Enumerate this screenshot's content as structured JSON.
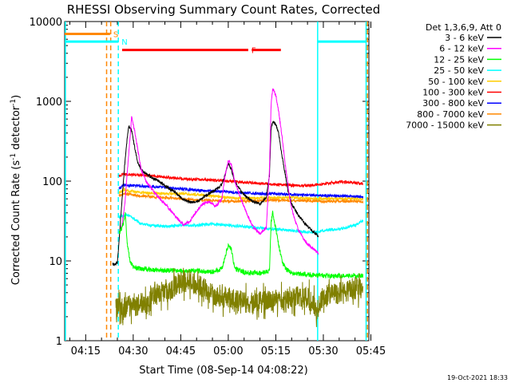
{
  "chart_data": {
    "type": "line",
    "title": "RHESSI Observing Summary Count Rates, Corrected",
    "xlabel": "Start Time (08-Sep-14 04:08:22)",
    "ylabel_main": "Corrected Count Rate (s",
    "ylabel_sup1": "-1",
    "ylabel_mid": " detector",
    "ylabel_sup2": "-1",
    "ylabel_end": ")",
    "yscale": "log",
    "ylim": [
      1,
      10000
    ],
    "xlim": [
      8.37,
      104.37
    ],
    "x_unit": "minutes after 04:00 UT",
    "x_ticks": [
      {
        "value": 15,
        "label": "04:15"
      },
      {
        "value": 30,
        "label": "04:30"
      },
      {
        "value": 45,
        "label": "04:45"
      },
      {
        "value": 60,
        "label": "05:00"
      },
      {
        "value": 75,
        "label": "05:15"
      },
      {
        "value": 90,
        "label": "05:30"
      },
      {
        "value": 105,
        "label": "05:45"
      }
    ],
    "y_ticks": [
      {
        "value": 1,
        "label": "1"
      },
      {
        "value": 10,
        "label": "10"
      },
      {
        "value": 100,
        "label": "100"
      },
      {
        "value": 1000,
        "label": "1000"
      },
      {
        "value": 10000,
        "label": "10000"
      }
    ],
    "legend": {
      "placement": "right",
      "header": "Det 1,3,6,9, Att 0",
      "entries": [
        {
          "label": "3 - 6 keV",
          "color": "#000000"
        },
        {
          "label": "6 - 12 keV",
          "color": "#ff00ff"
        },
        {
          "label": "12 - 25 keV",
          "color": "#00ff00"
        },
        {
          "label": "25 - 50 keV",
          "color": "#00ffff"
        },
        {
          "label": "50 - 100 keV",
          "color": "#ffcc00"
        },
        {
          "label": "100 - 300 keV",
          "color": "#ff0000"
        },
        {
          "label": "300 - 800 keV",
          "color": "#0000ff"
        },
        {
          "label": "800 - 7000 keV",
          "color": "#ff8800"
        },
        {
          "label": "7000 - 15000 keV",
          "color": "#808000"
        }
      ]
    },
    "series": [
      {
        "color": "#0000ff",
        "x": [
          25.5,
          27,
          30,
          35,
          40,
          45,
          50,
          55,
          60,
          65,
          70,
          75,
          80,
          85,
          90,
          95,
          100,
          102.5
        ],
        "y": [
          80,
          90,
          88,
          86,
          83,
          80,
          77,
          75,
          73,
          71,
          70,
          69,
          68,
          67,
          66,
          65,
          64,
          63
        ]
      },
      {
        "color": "#ff0000",
        "x": [
          25.5,
          27,
          30,
          35,
          40,
          45,
          50,
          55,
          60,
          65,
          70,
          75,
          80,
          85,
          90,
          95,
          100,
          102.5
        ],
        "y": [
          115,
          122,
          120,
          118,
          112,
          108,
          105,
          103,
          100,
          97,
          94,
          91,
          89,
          88,
          92,
          98,
          95,
          93
        ]
      },
      {
        "color": "#ffcc00",
        "x": [
          25.5,
          27,
          30,
          35,
          40,
          45,
          50,
          55,
          60,
          65,
          70,
          75,
          80,
          85,
          90,
          95,
          100,
          102.5
        ],
        "y": [
          70,
          78,
          74,
          71,
          70,
          70,
          68,
          65,
          62,
          61,
          61,
          62,
          62,
          61,
          60,
          60,
          60,
          59
        ]
      },
      {
        "color": "#ff8800",
        "x": [
          25.5,
          27,
          30,
          35,
          40,
          45,
          50,
          55,
          60,
          65,
          70,
          75,
          80,
          85,
          90,
          95,
          100,
          102.5
        ],
        "y": [
          65,
          70,
          67,
          64,
          62,
          60,
          58,
          57,
          56,
          56,
          57,
          58,
          57,
          57,
          56,
          56,
          56,
          55
        ]
      },
      {
        "color": "#00ffff",
        "x": [
          25.5,
          26,
          28,
          30,
          32,
          35,
          40,
          45,
          50,
          55,
          60,
          65,
          70,
          75,
          80,
          85,
          88.5,
          90,
          95,
          100,
          102.5
        ],
        "y": [
          35,
          36,
          38,
          34,
          30,
          28,
          27,
          28,
          28,
          29,
          28,
          27,
          26,
          25,
          24,
          23,
          23,
          24,
          25,
          28,
          32
        ]
      },
      {
        "color": "#000000",
        "x": [
          23.5,
          25,
          26.5,
          27.5,
          28.5,
          29.5,
          30.5,
          31.5,
          32.5,
          34,
          36,
          38,
          40,
          42,
          44,
          46,
          48,
          50,
          52,
          54,
          56,
          58,
          59,
          60,
          61,
          62,
          64,
          66,
          68,
          70,
          72,
          73,
          73.5,
          74,
          75,
          76,
          77,
          78,
          79,
          80,
          82,
          84,
          86,
          88,
          88.5
        ],
        "y": [
          9,
          9.5,
          60,
          200,
          480,
          430,
          260,
          170,
          140,
          125,
          110,
          100,
          88,
          78,
          68,
          58,
          55,
          55,
          62,
          70,
          78,
          90,
          120,
          165,
          140,
          100,
          75,
          62,
          55,
          52,
          62,
          120,
          450,
          560,
          520,
          380,
          200,
          120,
          70,
          52,
          38,
          30,
          25,
          21,
          20
        ]
      },
      {
        "color": "#ff00ff",
        "x": [
          25.5,
          26.5,
          27.5,
          28.5,
          29.5,
          30.5,
          31.5,
          32.5,
          34,
          36,
          38,
          40,
          42,
          44,
          46,
          48,
          50,
          52,
          54,
          56,
          58,
          59,
          60,
          61,
          62,
          64,
          66,
          68,
          70,
          72,
          73,
          73.5,
          74,
          75,
          76,
          77,
          78,
          79,
          80,
          82,
          84,
          86,
          88,
          88.5
        ],
        "y": [
          22,
          28,
          60,
          200,
          640,
          420,
          240,
          140,
          100,
          78,
          62,
          52,
          42,
          34,
          28,
          32,
          42,
          52,
          55,
          48,
          60,
          120,
          180,
          160,
          100,
          60,
          38,
          26,
          22,
          26,
          140,
          900,
          1450,
          1200,
          700,
          350,
          160,
          80,
          45,
          25,
          18,
          15,
          13,
          12
        ]
      },
      {
        "color": "#00ff00",
        "x": [
          25.5,
          26,
          27,
          27.5,
          28,
          29,
          30,
          32,
          35,
          40,
          45,
          50,
          55,
          58,
          60,
          61,
          62,
          65,
          70,
          73,
          73.5,
          74,
          75,
          76,
          77,
          78,
          80,
          85,
          90,
          95,
          100,
          102.5
        ],
        "y": [
          22,
          24,
          30,
          40,
          18,
          10,
          8.5,
          8,
          7.8,
          7.6,
          7.5,
          7.5,
          7.3,
          8,
          16,
          14,
          8,
          7.2,
          7,
          7.5,
          30,
          40,
          25,
          15,
          10,
          8,
          7,
          6.8,
          6.5,
          6.5,
          6.5,
          6.5
        ]
      },
      {
        "color": "#808000",
        "x": [
          24.5,
          30,
          33,
          35,
          36,
          40,
          44,
          46,
          48,
          50,
          52,
          55,
          58,
          60,
          62,
          65,
          70,
          75,
          80,
          85,
          88,
          90,
          95,
          100,
          102.5
        ],
        "y": [
          2.6,
          2.7,
          3,
          2.8,
          3.8,
          4,
          5,
          5.6,
          5.6,
          5,
          4.5,
          3.8,
          3.5,
          3.5,
          3.3,
          3.1,
          3,
          3.2,
          3.5,
          3.5,
          2.5,
          3.5,
          4,
          4.5,
          4.5
        ]
      }
    ],
    "horizontal_segments": [
      {
        "label": "S",
        "color": "#ff8800",
        "x0": 8.37,
        "x1": 22.7,
        "y": 7000
      },
      {
        "label": "N",
        "color": "#00ffff",
        "x0": 8.37,
        "x1": 25.3,
        "y": 5600
      },
      {
        "label": "",
        "color": "#00ffff",
        "x0": 88.2,
        "x1": 103.6,
        "y": 5600
      },
      {
        "label": "F",
        "color": "#ff0000",
        "x0": 26.5,
        "x1": 66.3,
        "y": 4400
      },
      {
        "label": "",
        "color": "#ff0000",
        "x0": 67.4,
        "x1": 76.6,
        "y": 4400
      }
    ],
    "vertical_markers": [
      {
        "x": 8.6,
        "color": "#00ffff",
        "dashed": false
      },
      {
        "x": 21.6,
        "color": "#ff8800",
        "dashed": true
      },
      {
        "x": 22.9,
        "color": "#ff8800",
        "dashed": true
      },
      {
        "x": 25.3,
        "color": "#00ffff",
        "dashed": true
      },
      {
        "x": 88.2,
        "color": "#00ffff",
        "dashed": false
      },
      {
        "x": 103.5,
        "color": "#00ffff",
        "dashed": false
      },
      {
        "x": 103.9,
        "color": "#ff8800",
        "dashed": true
      }
    ],
    "footer_date": "19-Oct-2021 18:33"
  }
}
